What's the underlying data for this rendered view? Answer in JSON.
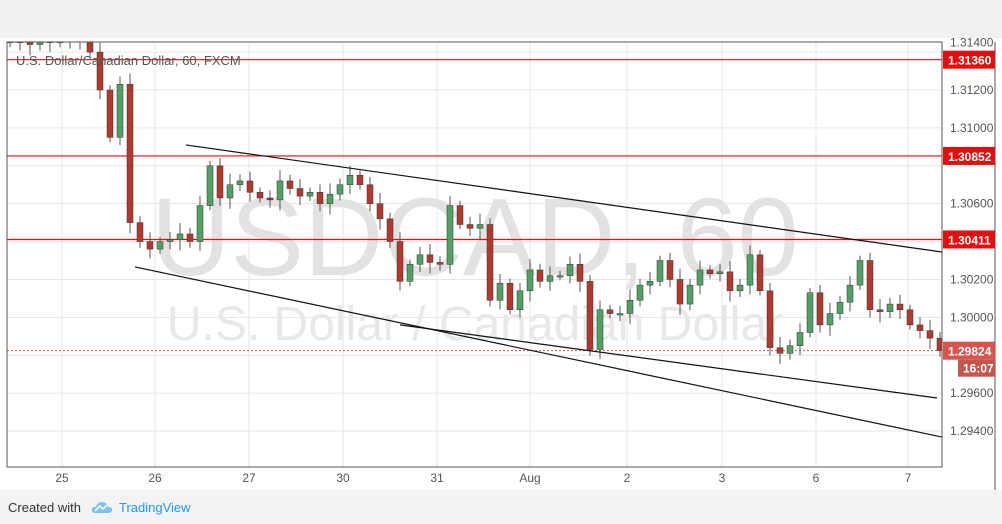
{
  "chart_data": {
    "type": "candlestick",
    "title": "U.S. Dollar/Canadian Dollar, 60, FXCM",
    "watermark": {
      "symbol": "USDCAD, 60",
      "description": "U.S. Dollar / Canadian Dollar"
    },
    "y_ticks": [
      "1.29400",
      "1.29600",
      "1.30000",
      "1.30200",
      "1.30600",
      "1.31000",
      "1.31200",
      "1.31400"
    ],
    "ylim": [
      1.2922,
      1.3148
    ],
    "x_ticks": [
      {
        "label": "25",
        "index": 5.2
      },
      {
        "label": "26",
        "index": 14.5
      },
      {
        "label": "27",
        "index": 23.9
      },
      {
        "label": "30",
        "index": 33.3
      },
      {
        "label": "31",
        "index": 42.7
      },
      {
        "label": "Aug",
        "index": 52
      },
      {
        "label": "2",
        "index": 61.7
      },
      {
        "label": "3",
        "index": 71.2
      },
      {
        "label": "6",
        "index": 80.6
      },
      {
        "label": "7",
        "index": 89.8
      }
    ],
    "closes": [
      1.3145,
      1.3146,
      1.3144,
      1.3147,
      1.3145,
      1.3146,
      1.3147,
      1.3148,
      1.314,
      1.312,
      1.3095,
      1.3123,
      1.305,
      1.304,
      1.3036,
      1.304,
      1.3041,
      1.3044,
      1.304,
      1.3059,
      1.308,
      1.3063,
      1.307,
      1.3072,
      1.3066,
      1.3063,
      1.3062,
      1.3072,
      1.3068,
      1.3064,
      1.3066,
      1.306,
      1.3065,
      1.307,
      1.3075,
      1.307,
      1.306,
      1.3052,
      1.304,
      1.3019,
      1.3028,
      1.3033,
      1.3029,
      1.3028,
      1.3059,
      1.3049,
      1.3047,
      1.3049,
      1.3009,
      1.3018,
      1.3004,
      1.3014,
      1.3025,
      1.3019,
      1.3022,
      1.3022,
      1.3028,
      1.3019,
      1.2983,
      1.3004,
      1.3002,
      1.3002,
      1.3009,
      1.3017,
      1.3019,
      1.303,
      1.302,
      1.3007,
      1.3017,
      1.3025,
      1.3023,
      1.3024,
      1.3014,
      1.3017,
      1.3033,
      1.3014,
      1.2984,
      1.2981,
      1.2985,
      1.2992,
      1.3013,
      1.2996,
      1.3002,
      1.3008,
      1.3017,
      1.303,
      1.3004,
      1.3003,
      1.3007,
      1.3004,
      1.2996,
      1.2993,
      1.2989,
      1.29824
    ],
    "horizontal_levels": [
      {
        "value": "1.31360",
        "color": "#e01010"
      },
      {
        "value": "1.30852",
        "color": "#e01010"
      },
      {
        "value": "1.30411",
        "color": "#e01010"
      }
    ],
    "last_price": {
      "value": "1.29824",
      "countdown": "16:07",
      "color": "#d9534f"
    },
    "trend_lines": [
      {
        "from": [
          17.6,
          1.3091
        ],
        "to": [
          93.2,
          1.30345
        ]
      },
      {
        "from": [
          12.5,
          1.30266
        ],
        "to": [
          93.2,
          1.29368
        ]
      },
      {
        "from": [
          39,
          1.2996
        ],
        "to": [
          92.7,
          1.29574
        ]
      }
    ],
    "colors": {
      "up": "#53a065",
      "down": "#b03a30",
      "grid": "#e6e6e6"
    },
    "grid": true
  },
  "footer": {
    "created": "Created with",
    "brand": "TradingView"
  }
}
